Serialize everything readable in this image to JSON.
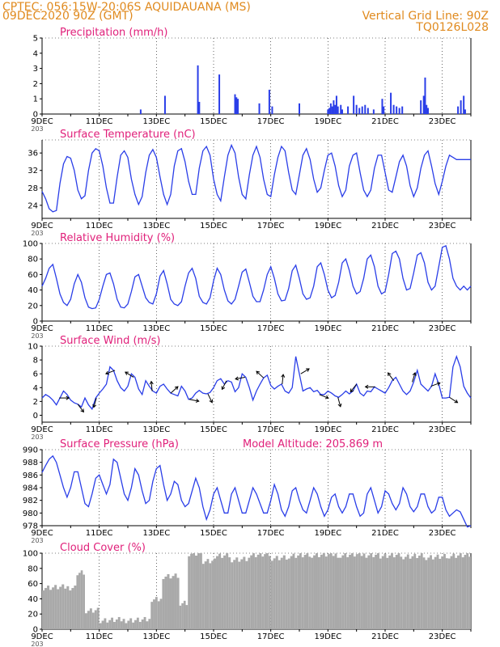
{
  "header": {
    "line1_left": "CPTEC:  056:15W-20:06S  AQUIDAUANA (MS)",
    "line1_right": "Vertical Grid Line: 90Z",
    "line2_left": "09DEC2020 90Z (GMT)",
    "line2_right": "TQ0126L028"
  },
  "colors": {
    "header": "#e08a1e",
    "title": "#e0207a",
    "series": "#2a3ee8",
    "cloud": "#a9a9a9",
    "arrow": "#000000",
    "grid": "#000000"
  },
  "x_axis": {
    "start_label": "9DEC",
    "labels": [
      "9DEC",
      "11DEC",
      "13DEC",
      "15DEC",
      "17DEC",
      "19DEC",
      "21DEC",
      "23DEC"
    ],
    "label_day_offsets": [
      0,
      2,
      4,
      6,
      8,
      10,
      12,
      14
    ],
    "day_span": 15,
    "cut_label": "203"
  },
  "chart_data": [
    {
      "type": "bar",
      "title": "Precipitation (mm/h)",
      "ylim": [
        0,
        5
      ],
      "yticks": [
        0,
        1,
        2,
        3,
        4,
        5
      ],
      "series": [
        {
          "name": "Precipitation",
          "values_note": "hourly bars"
        }
      ],
      "events": [
        [
          3.45,
          0.3
        ],
        [
          4.3,
          1.2
        ],
        [
          5.45,
          3.2
        ],
        [
          5.5,
          0.8
        ],
        [
          6.2,
          2.6
        ],
        [
          6.75,
          1.3
        ],
        [
          6.8,
          1.1
        ],
        [
          6.85,
          1.0
        ],
        [
          7.6,
          0.7
        ],
        [
          7.95,
          1.6
        ],
        [
          8.05,
          0.5
        ],
        [
          9.0,
          0.7
        ],
        [
          10.0,
          0.3
        ],
        [
          10.05,
          0.4
        ],
        [
          10.1,
          0.7
        ],
        [
          10.15,
          0.5
        ],
        [
          10.2,
          0.9
        ],
        [
          10.25,
          0.6
        ],
        [
          10.3,
          1.2
        ],
        [
          10.35,
          0.5
        ],
        [
          10.45,
          0.6
        ],
        [
          10.5,
          0.3
        ],
        [
          10.7,
          0.5
        ],
        [
          10.9,
          1.2
        ],
        [
          11.0,
          0.6
        ],
        [
          11.1,
          0.4
        ],
        [
          11.2,
          0.5
        ],
        [
          11.3,
          0.6
        ],
        [
          11.4,
          0.4
        ],
        [
          11.6,
          0.3
        ],
        [
          11.9,
          1.0
        ],
        [
          11.95,
          0.5
        ],
        [
          12.2,
          1.4
        ],
        [
          12.3,
          0.6
        ],
        [
          12.4,
          0.5
        ],
        [
          12.5,
          0.4
        ],
        [
          12.6,
          0.5
        ],
        [
          13.25,
          0.9
        ],
        [
          13.35,
          1.2
        ],
        [
          13.4,
          2.4
        ],
        [
          13.45,
          0.6
        ],
        [
          13.5,
          0.4
        ],
        [
          14.55,
          0.5
        ],
        [
          14.65,
          0.9
        ],
        [
          14.75,
          1.2
        ],
        [
          14.8,
          0.3
        ]
      ]
    },
    {
      "type": "line",
      "title": "Surface Temperature (nC)",
      "ylim": [
        21,
        39
      ],
      "yticks": [
        24,
        28,
        32,
        36
      ],
      "x_hours": [
        0,
        3,
        6,
        9,
        12,
        15,
        18,
        21,
        24,
        27,
        30,
        33,
        36,
        39,
        42,
        45,
        48,
        51,
        54,
        57,
        60,
        63,
        66,
        69,
        72,
        75,
        78,
        81,
        84,
        87,
        90,
        93,
        96,
        99,
        102,
        105,
        108,
        111,
        114,
        117,
        120,
        123,
        126,
        129,
        132,
        135,
        138,
        141,
        144,
        147,
        150,
        153,
        156,
        159,
        162,
        165,
        168,
        171,
        174,
        177,
        180,
        183,
        186,
        189,
        192,
        195,
        198,
        201,
        204,
        207,
        210,
        213,
        216,
        219,
        222,
        225,
        228,
        231,
        234,
        237,
        240,
        243,
        246,
        249,
        252,
        255,
        258,
        261,
        264,
        267,
        270,
        273,
        276,
        279,
        282,
        285,
        288,
        291,
        294,
        297,
        300,
        303,
        306,
        309,
        312,
        315,
        318,
        321,
        324,
        327,
        330,
        333,
        336,
        339,
        342,
        345,
        348,
        351,
        354,
        357,
        360
      ],
      "values": [
        27.2,
        25.5,
        23.2,
        22.5,
        22.8,
        29,
        33.5,
        35.2,
        34.8,
        32,
        27.5,
        25.5,
        26.2,
        32,
        36,
        37,
        36.5,
        33,
        28,
        24.5,
        24.5,
        30.5,
        35.5,
        36.5,
        35,
        30,
        26.5,
        24.2,
        26,
        31.5,
        35.5,
        36.8,
        35,
        30.5,
        26.5,
        24.2,
        26.5,
        33,
        36.5,
        37,
        34,
        29.5,
        26.5,
        26.5,
        32.5,
        36.5,
        37.5,
        35.5,
        30,
        26.5,
        25,
        30.5,
        35.5,
        37.8,
        36,
        30.5,
        26.5,
        25.5,
        31,
        35.5,
        37.5,
        35,
        30,
        26.5,
        26,
        31,
        35,
        37.5,
        36.5,
        31.5,
        27.5,
        26.5,
        31,
        35.5,
        37,
        34.5,
        30,
        27,
        28,
        32,
        35.5,
        36,
        33,
        28.5,
        26,
        27.5,
        33,
        35.5,
        36,
        31.5,
        27.5,
        26,
        27.5,
        32.5,
        35.5,
        35.5,
        31.5,
        27.5,
        27,
        30.5,
        34,
        35.5,
        33,
        28.5,
        26,
        28,
        32.5,
        35.5,
        36.5,
        33,
        29,
        26.5,
        29.5,
        33,
        35.5,
        35,
        34.5,
        34.5,
        34.5,
        34.5,
        34.5
      ]
    },
    {
      "type": "line",
      "title": "Relative Humidity (%)",
      "ylim": [
        0,
        100
      ],
      "yticks": [
        0,
        20,
        40,
        60,
        80,
        100
      ],
      "x_hours": [
        0,
        3,
        6,
        9,
        12,
        15,
        18,
        21,
        24,
        27,
        30,
        33,
        36,
        39,
        42,
        45,
        48,
        51,
        54,
        57,
        60,
        63,
        66,
        69,
        72,
        75,
        78,
        81,
        84,
        87,
        90,
        93,
        96,
        99,
        102,
        105,
        108,
        111,
        114,
        117,
        120,
        123,
        126,
        129,
        132,
        135,
        138,
        141,
        144,
        147,
        150,
        153,
        156,
        159,
        162,
        165,
        168,
        171,
        174,
        177,
        180,
        183,
        186,
        189,
        192,
        195,
        198,
        201,
        204,
        207,
        210,
        213,
        216,
        219,
        222,
        225,
        228,
        231,
        234,
        237,
        240,
        243,
        246,
        249,
        252,
        255,
        258,
        261,
        264,
        267,
        270,
        273,
        276,
        279,
        282,
        285,
        288,
        291,
        294,
        297,
        300,
        303,
        306,
        309,
        312,
        315,
        318,
        321,
        324,
        327,
        330,
        333,
        336,
        339,
        342,
        345,
        348,
        351,
        354,
        357,
        360
      ],
      "values": [
        45,
        55,
        68,
        73,
        55,
        35,
        24,
        20,
        28,
        48,
        60,
        50,
        30,
        18,
        16,
        17,
        28,
        45,
        60,
        62,
        48,
        28,
        18,
        17,
        22,
        38,
        57,
        60,
        45,
        30,
        24,
        22,
        35,
        58,
        65,
        48,
        28,
        22,
        20,
        25,
        45,
        62,
        68,
        55,
        32,
        24,
        22,
        30,
        52,
        68,
        60,
        40,
        26,
        22,
        28,
        45,
        63,
        67,
        50,
        32,
        25,
        25,
        40,
        60,
        70,
        55,
        35,
        26,
        27,
        42,
        65,
        72,
        55,
        35,
        28,
        30,
        45,
        70,
        75,
        60,
        40,
        30,
        33,
        50,
        75,
        80,
        65,
        45,
        35,
        38,
        55,
        80,
        85,
        70,
        45,
        35,
        38,
        60,
        87,
        90,
        80,
        55,
        40,
        42,
        62,
        85,
        88,
        75,
        50,
        40,
        45,
        70,
        95,
        97,
        80,
        55,
        45,
        40,
        45,
        40,
        45
      ]
    },
    {
      "type": "line",
      "title": "Surface Wind (m/s)",
      "ylim": [
        -1,
        10
      ],
      "yticks": [
        0,
        2,
        4,
        6,
        8,
        10
      ],
      "x_hours": [
        0,
        3,
        6,
        9,
        12,
        15,
        18,
        21,
        24,
        27,
        30,
        33,
        36,
        39,
        42,
        45,
        48,
        51,
        54,
        57,
        60,
        63,
        66,
        69,
        72,
        75,
        78,
        81,
        84,
        87,
        90,
        93,
        96,
        99,
        102,
        105,
        108,
        111,
        114,
        117,
        120,
        123,
        126,
        129,
        132,
        135,
        138,
        141,
        144,
        147,
        150,
        153,
        156,
        159,
        162,
        165,
        168,
        171,
        174,
        177,
        180,
        183,
        186,
        189,
        192,
        195,
        198,
        201,
        204,
        207,
        210,
        213,
        216,
        219,
        222,
        225,
        228,
        231,
        234,
        237,
        240,
        243,
        246,
        249,
        252,
        255,
        258,
        261,
        264,
        267,
        270,
        273,
        276,
        279,
        282,
        285,
        288,
        291,
        294,
        297,
        300,
        303,
        306,
        309,
        312,
        315,
        318,
        321,
        324,
        327,
        330,
        333,
        336,
        339,
        342,
        345,
        348,
        351,
        354,
        357,
        360
      ],
      "values": [
        2.5,
        3,
        2.7,
        2.2,
        1.5,
        2.5,
        3.5,
        3,
        2.2,
        1.8,
        1.6,
        1.2,
        2.5,
        1.5,
        0.9,
        2.5,
        3.2,
        3.8,
        4.5,
        7,
        6.5,
        5,
        4,
        3.5,
        4.2,
        6,
        5.5,
        3.8,
        3,
        5,
        4.2,
        3.5,
        3.2,
        4.2,
        4.5,
        3.8,
        3.2,
        3,
        2.8,
        4.2,
        3.5,
        2.3,
        2.5,
        3.2,
        3.6,
        3.2,
        3.1,
        3.3,
        4,
        5,
        5.3,
        4.5,
        5,
        4.8,
        3.4,
        4,
        6,
        5.5,
        4,
        2.2,
        3.5,
        4.5,
        5.4,
        5.8,
        4.3,
        3.8,
        4.2,
        4.5,
        3.5,
        3.2,
        4,
        8.5,
        6,
        3.5,
        3.8,
        4,
        3.4,
        3.6,
        3,
        3,
        3.5,
        3.2,
        2.8,
        2.6,
        3,
        3.5,
        3.1,
        3.5,
        4.5,
        3.2,
        2.8,
        3.5,
        3.4,
        4.1,
        3.8,
        3.5,
        3.2,
        4,
        5,
        5.5,
        4.5,
        3.5,
        3,
        3.5,
        4.8,
        6.5,
        4.5,
        4,
        3.5,
        4.2,
        6,
        4.5,
        2.5,
        2.5,
        2.6,
        7,
        8.5,
        7,
        4.2,
        3.2,
        2.5
      ]
    },
    {
      "type": "line",
      "title": "Surface Pressure (hPa)",
      "subtitle": "Model Altitude: 205.869 m",
      "ylim": [
        978,
        990
      ],
      "yticks": [
        978,
        980,
        982,
        984,
        986,
        988,
        990
      ],
      "x_hours": [
        0,
        3,
        6,
        9,
        12,
        15,
        18,
        21,
        24,
        27,
        30,
        33,
        36,
        39,
        42,
        45,
        48,
        51,
        54,
        57,
        60,
        63,
        66,
        69,
        72,
        75,
        78,
        81,
        84,
        87,
        90,
        93,
        96,
        99,
        102,
        105,
        108,
        111,
        114,
        117,
        120,
        123,
        126,
        129,
        132,
        135,
        138,
        141,
        144,
        147,
        150,
        153,
        156,
        159,
        162,
        165,
        168,
        171,
        174,
        177,
        180,
        183,
        186,
        189,
        192,
        195,
        198,
        201,
        204,
        207,
        210,
        213,
        216,
        219,
        222,
        225,
        228,
        231,
        234,
        237,
        240,
        243,
        246,
        249,
        252,
        255,
        258,
        261,
        264,
        267,
        270,
        273,
        276,
        279,
        282,
        285,
        288,
        291,
        294,
        297,
        300,
        303,
        306,
        309,
        312,
        315,
        318,
        321,
        324,
        327,
        330,
        333,
        336,
        339,
        342,
        345,
        348,
        351,
        354,
        357,
        360
      ],
      "values": [
        986.4,
        987.5,
        988.5,
        989,
        988,
        986,
        984,
        982.5,
        984,
        986.5,
        986.5,
        984,
        981.5,
        981,
        983,
        985.5,
        986,
        984.5,
        983,
        984.5,
        988.5,
        988,
        985.5,
        983,
        982,
        984,
        987,
        986,
        983.5,
        981.5,
        982,
        985,
        987,
        987.5,
        984.5,
        982,
        983,
        985,
        984.5,
        982,
        981,
        981.5,
        983.5,
        985.5,
        984,
        981,
        979,
        980.5,
        983,
        984,
        982,
        980,
        980,
        983,
        984,
        982,
        980,
        980,
        982,
        984,
        983,
        981.5,
        980,
        980,
        982,
        984.5,
        983,
        980.5,
        979.5,
        981,
        983.5,
        984,
        982,
        980.5,
        980,
        982,
        984,
        983,
        981,
        979.5,
        980.5,
        982.5,
        983,
        981,
        980,
        981,
        983,
        983,
        981,
        979.5,
        980,
        983,
        984,
        982,
        980,
        981,
        983.5,
        983,
        981.5,
        980.5,
        981.5,
        984,
        983,
        981,
        980.2,
        981,
        983,
        983,
        981,
        980,
        980.5,
        982.5,
        982.5,
        980.5,
        979.5,
        980,
        980.5,
        980.2,
        979,
        977.8,
        978
      ]
    },
    {
      "type": "bar",
      "title": "Cloud Cover (%)",
      "ylim": [
        0,
        100
      ],
      "yticks": [
        0,
        20,
        40,
        60,
        80,
        100
      ],
      "segments": [
        [
          0.0,
          1.2,
          55
        ],
        [
          1.2,
          1.5,
          75
        ],
        [
          1.5,
          2.0,
          25
        ],
        [
          2.0,
          3.8,
          12
        ],
        [
          3.8,
          4.2,
          40
        ],
        [
          4.2,
          4.8,
          70
        ],
        [
          4.8,
          5.1,
          35
        ],
        [
          5.1,
          5.6,
          100
        ],
        [
          5.6,
          6.0,
          90
        ],
        [
          6.0,
          6.6,
          97
        ],
        [
          6.6,
          7.2,
          92
        ],
        [
          7.2,
          8.0,
          98
        ],
        [
          8.0,
          8.6,
          94
        ],
        [
          8.6,
          9.4,
          97
        ],
        [
          9.4,
          10.4,
          98
        ],
        [
          10.4,
          11.8,
          98
        ],
        [
          11.8,
          12.6,
          97
        ],
        [
          12.6,
          13.4,
          96
        ],
        [
          13.4,
          14.2,
          95
        ],
        [
          14.2,
          15.0,
          97
        ]
      ]
    }
  ]
}
